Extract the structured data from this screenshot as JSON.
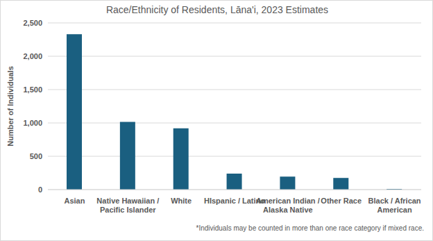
{
  "chart_data": {
    "type": "bar",
    "title": "Race/Ethnicity of Residents, Lāna'i, 2023 Estimates",
    "y_label": "Number of Individuals",
    "note": "*Individuals may be counted in more than one race category if mixed race.",
    "categories": [
      "Asian",
      "Native Hawaiian / Pacific Islander",
      "White",
      "HIspanic / Latino",
      "American Indian / Alaska Native",
      "Other Race",
      "Black / African American"
    ],
    "values": [
      2330,
      1015,
      920,
      240,
      195,
      175,
      10
    ],
    "color": "#1a5f80",
    "ylim": [
      0,
      2500
    ],
    "yticks": [
      0,
      500,
      {
        "value": 1000,
        "label": "1,000"
      },
      {
        "value": 1500,
        "label": "1,500"
      },
      {
        "value": 2000,
        "label": "2,000"
      },
      {
        "value": 2500,
        "label": "2,500"
      }
    ],
    "grid": true
  }
}
